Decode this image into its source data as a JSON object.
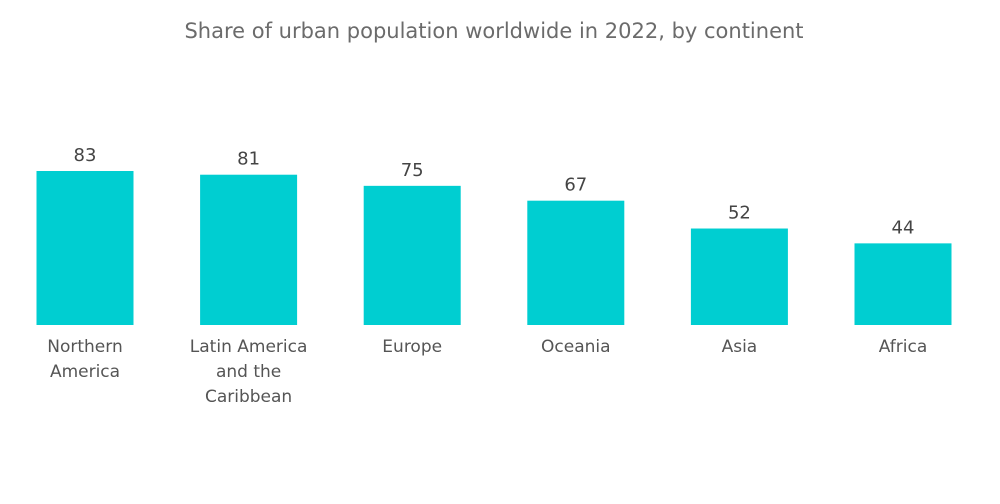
{
  "chart_data": {
    "type": "bar",
    "title": "Share of urban population worldwide in 2022, by continent",
    "xlabel": "",
    "ylabel": "",
    "categories": [
      "Northern America",
      "Latin America and the Caribbean",
      "Europe",
      "Oceania",
      "Asia",
      "Africa"
    ],
    "category_lines": [
      [
        "Northern",
        "America"
      ],
      [
        "Latin America",
        "and the",
        "Caribbean"
      ],
      [
        "Europe"
      ],
      [
        "Oceania"
      ],
      [
        "Asia"
      ],
      [
        "Africa"
      ]
    ],
    "values": [
      83,
      81,
      75,
      67,
      52,
      44
    ],
    "ylim": [
      0,
      83
    ],
    "grid": false,
    "legend": "none",
    "bar_color": "#00ced1"
  }
}
